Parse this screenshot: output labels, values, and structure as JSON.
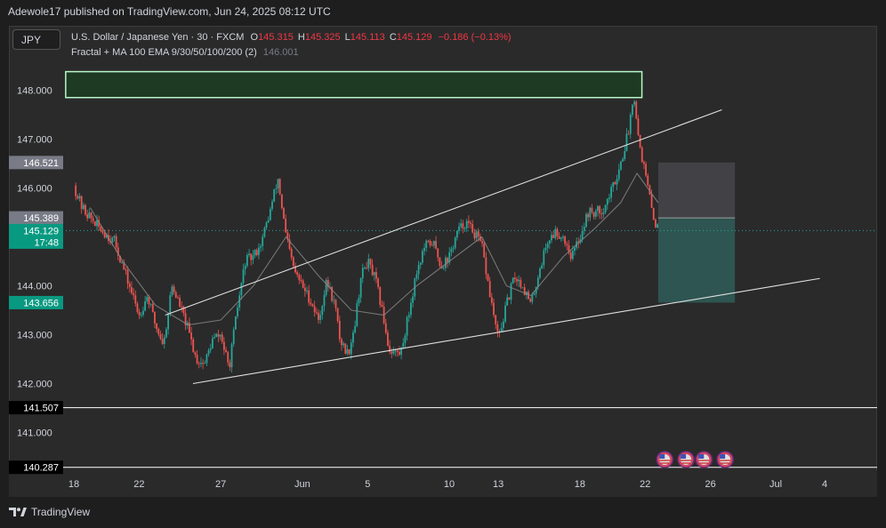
{
  "header": {
    "publish_text": "Adewole17 published on TradingView.com, Jun 24, 2025 08:12 UTC"
  },
  "toolbar": {
    "symbol_label": "JPY"
  },
  "legend": {
    "title": "U.S. Dollar / Japanese Yen · 30 · FXCM",
    "open_label": "O",
    "open_value": "145.315",
    "high_label": "H",
    "high_value": "145.325",
    "low_label": "L",
    "low_value": "145.113",
    "close_label": "C",
    "close_value": "145.129",
    "change": "−0.186 (−0.13%)",
    "indicator": "Fractal + MA 100 EMA 9/30/50/100/200 (2)",
    "indicator_value": "146.001"
  },
  "footer": {
    "brand": "TradingView"
  },
  "colors": {
    "up": "#26a69a",
    "down": "#ef5350",
    "price_line": "#26a69a",
    "supply_zone": "#1e3a22",
    "supply_zone_border": "#b9f6ca",
    "stop_zone": "#454549",
    "target_zone": "#2f5a55",
    "channel": "#e0e0e0"
  },
  "chart_data": {
    "type": "candlestick",
    "title": "U.S. Dollar / Japanese Yen · 30 · FXCM",
    "y_ticks": [
      148.0,
      147.0,
      146.0,
      144.0,
      143.0,
      142.0,
      141.0
    ],
    "y_range": [
      140.2,
      148.5
    ],
    "x_ticks": [
      {
        "label": "18",
        "day": 0
      },
      {
        "label": "22",
        "day": 4
      },
      {
        "label": "27",
        "day": 9
      },
      {
        "label": "Jun",
        "day": 14
      },
      {
        "label": "5",
        "day": 18
      },
      {
        "label": "10",
        "day": 23
      },
      {
        "label": "13",
        "day": 26
      },
      {
        "label": "18",
        "day": 31
      },
      {
        "label": "22",
        "day": 35
      },
      {
        "label": "26",
        "day": 39
      },
      {
        "label": "Jul",
        "day": 43
      },
      {
        "label": "4",
        "day": 46
      }
    ],
    "price_badges": [
      {
        "label": "146.521",
        "value": 146.521,
        "style": "gray"
      },
      {
        "label": "145.389",
        "value": 145.389,
        "style": "gray"
      },
      {
        "label": "145.129",
        "sublabel": "17:48",
        "value": 145.129,
        "style": "green"
      },
      {
        "label": "143.656",
        "value": 143.656,
        "style": "green"
      },
      {
        "label": "141.507",
        "value": 141.507,
        "style": "black"
      },
      {
        "label": "140.287",
        "value": 140.287,
        "style": "black"
      }
    ],
    "horizontal_lines": [
      141.507,
      140.287
    ],
    "current_price": 145.129,
    "path": [
      [
        0,
        146.05
      ],
      [
        0.5,
        145.6
      ],
      [
        1.5,
        145.2
      ],
      [
        2.5,
        144.9
      ],
      [
        3.2,
        144.2
      ],
      [
        4,
        143.4
      ],
      [
        4.5,
        143.8
      ],
      [
        5,
        143.2
      ],
      [
        5.5,
        142.8
      ],
      [
        6,
        144.0
      ],
      [
        6.5,
        143.6
      ],
      [
        7,
        143.1
      ],
      [
        7.5,
        142.5
      ],
      [
        8,
        142.4
      ],
      [
        8.5,
        142.9
      ],
      [
        9,
        143.0
      ],
      [
        9.5,
        142.3
      ],
      [
        10,
        143.5
      ],
      [
        10.5,
        144.5
      ],
      [
        11,
        144.6
      ],
      [
        11.5,
        144.9
      ],
      [
        12,
        145.5
      ],
      [
        12.5,
        146.2
      ],
      [
        13,
        145.0
      ],
      [
        13.5,
        144.3
      ],
      [
        14,
        144.0
      ],
      [
        14.5,
        143.7
      ],
      [
        15,
        143.3
      ],
      [
        15.5,
        144.1
      ],
      [
        16,
        143.6
      ],
      [
        16.3,
        142.9
      ],
      [
        16.8,
        142.6
      ],
      [
        17.2,
        143.2
      ],
      [
        17.6,
        144.2
      ],
      [
        18,
        144.5
      ],
      [
        18.5,
        144.1
      ],
      [
        19,
        143.3
      ],
      [
        19.3,
        142.7
      ],
      [
        20,
        142.6
      ],
      [
        20.5,
        143.4
      ],
      [
        21,
        144.3
      ],
      [
        21.5,
        144.8
      ],
      [
        22,
        144.9
      ],
      [
        22.5,
        144.4
      ],
      [
        23,
        144.6
      ],
      [
        23.5,
        145.1
      ],
      [
        24,
        145.3
      ],
      [
        24.5,
        145.1
      ],
      [
        25,
        144.8
      ],
      [
        25.5,
        143.8
      ],
      [
        26,
        142.9
      ],
      [
        26.5,
        143.6
      ],
      [
        27,
        144.2
      ],
      [
        27.5,
        144.0
      ],
      [
        28,
        143.6
      ],
      [
        28.5,
        144.3
      ],
      [
        29,
        144.9
      ],
      [
        29.5,
        145.1
      ],
      [
        30,
        145.0
      ],
      [
        30.5,
        144.6
      ],
      [
        31,
        145.0
      ],
      [
        31.5,
        145.5
      ],
      [
        32,
        145.5
      ],
      [
        32.5,
        145.6
      ],
      [
        33,
        146.0
      ],
      [
        33.5,
        146.5
      ],
      [
        34,
        147.2
      ],
      [
        34.3,
        148.0
      ],
      [
        34.6,
        147.0
      ],
      [
        35,
        146.3
      ],
      [
        35.5,
        145.4
      ],
      [
        35.8,
        145.13
      ]
    ],
    "ema": [
      [
        1,
        145.6
      ],
      [
        3,
        144.5
      ],
      [
        5,
        143.6
      ],
      [
        7,
        143.2
      ],
      [
        9,
        143.3
      ],
      [
        11,
        144.0
      ],
      [
        13,
        145.0
      ],
      [
        15,
        144.2
      ],
      [
        17,
        143.5
      ],
      [
        19,
        143.4
      ],
      [
        21,
        144.0
      ],
      [
        23,
        144.5
      ],
      [
        25,
        145.0
      ],
      [
        26.5,
        144.0
      ],
      [
        28,
        143.8
      ],
      [
        30,
        144.6
      ],
      [
        32,
        145.2
      ],
      [
        33.5,
        145.7
      ],
      [
        34.5,
        146.3
      ],
      [
        35.8,
        145.7
      ]
    ],
    "supply_zone": {
      "day_from": -0.5,
      "day_to": 34.8,
      "price_from": 147.85,
      "price_to": 148.38
    },
    "channel": {
      "upper": [
        [
          5.6,
          143.4
        ],
        [
          39.7,
          147.6
        ]
      ],
      "lower": [
        [
          7.3,
          142.0
        ],
        [
          45.7,
          144.15
        ]
      ]
    },
    "position": {
      "day_from": 35.8,
      "day_to": 40.5,
      "entry": 145.389,
      "stop": 146.521,
      "target": 143.656
    },
    "event_flags": [
      36.2,
      37.5,
      38.6,
      39.9
    ]
  }
}
